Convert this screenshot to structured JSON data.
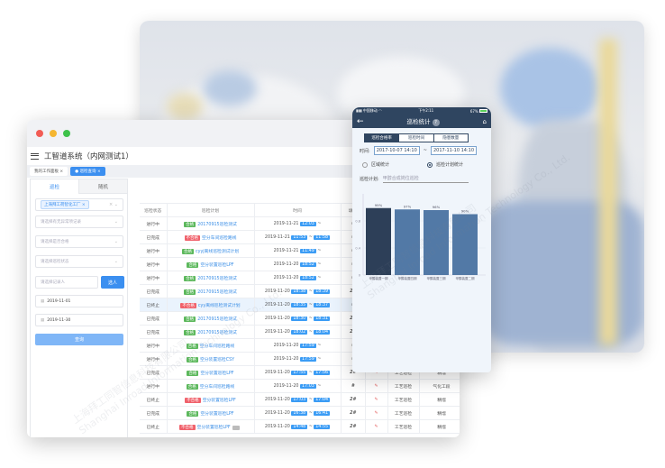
{
  "watermark": {
    "cn": "上海拜工同智信息科技有限公司",
    "en": "Shanghai Inroad Information Technology Co., Ltd."
  },
  "desktop": {
    "app_title": "工智道系统（内网测试1）",
    "page_tabs": [
      {
        "label": "我的工作面板",
        "active": false
      },
      {
        "label": "巡检查询",
        "active": true
      }
    ],
    "left_tabs": [
      "巡检",
      "随机"
    ],
    "filters": {
      "plant_tag": "上海拜工荷智化工厂",
      "abnormal_placeholder": "请选择有无异常项记录",
      "qualified_placeholder": "请选择是否合格",
      "status_placeholder": "请选择巡检状态",
      "recorder_placeholder": "请选择记录人",
      "pick_button": "选人",
      "date_from": "2019-11-01",
      "date_to": "2019-11-30",
      "query_button": "查询"
    },
    "table": {
      "headers": [
        "巡检状态",
        "巡检计划",
        "时间",
        "填写",
        "",
        "",
        ""
      ],
      "rows": [
        {
          "status": "进行中",
          "result": "合格",
          "plan": "20170915巡检测试",
          "date": "2019-11-21",
          "start": "12:03",
          "end": "",
          "fill": "#"
        },
        {
          "status": "已完成",
          "result": "不合格",
          "plan": "空分车间巡检路线",
          "date": "2019-11-21",
          "start": "11:53",
          "end": "11:58",
          "fill": "#"
        },
        {
          "status": "进行中",
          "result": "合格",
          "plan": "cyyj离线巡检测试计划",
          "date": "2019-11-21",
          "start": "11:49",
          "end": "",
          "fill": "#"
        },
        {
          "status": "进行中",
          "result": "合格",
          "plan": "空分装置巡检LPF",
          "date": "2019-11-20",
          "start": "18:52",
          "end": "",
          "fill": "#"
        },
        {
          "status": "进行中",
          "result": "合格",
          "plan": "20170915巡检测试",
          "date": "2019-11-20",
          "start": "18:52",
          "end": "",
          "fill": "#"
        },
        {
          "status": "已完成",
          "result": "合格",
          "plan": "20170915巡检测试",
          "date": "2019-11-20",
          "start": "18:38",
          "end": "18:39",
          "fill": "2#"
        },
        {
          "status": "已终止",
          "result": "不合格",
          "plan": "cyy离线巡检测试计划",
          "date": "2019-11-20",
          "start": "18:35",
          "end": "18:37",
          "fill": "#",
          "highlight": true
        },
        {
          "status": "已完成",
          "result": "合格",
          "plan": "20170915巡检测试",
          "date": "2019-11-20",
          "start": "18:30",
          "end": "18:31",
          "fill": "2#"
        },
        {
          "status": "已完成",
          "result": "合格",
          "plan": "20170915巡检测试",
          "date": "2019-11-20",
          "start": "18:02",
          "end": "18:04",
          "fill": "2#"
        },
        {
          "status": "进行中",
          "result": "合格",
          "plan": "空分车间巡检路线",
          "date": "2019-11-20",
          "start": "17:59",
          "end": "",
          "fill": "#"
        },
        {
          "status": "进行中",
          "result": "合格",
          "plan": "空分装置巡检CSY",
          "date": "2019-11-20",
          "start": "17:59",
          "end": "",
          "fill": "#"
        },
        {
          "status": "已完成",
          "result": "合格",
          "plan": "空分装置巡检LPF",
          "date": "2019-11-20",
          "start": "17:55",
          "end": "17:56",
          "fill": "2#",
          "type": "工艺巡检",
          "area": "精馏"
        },
        {
          "status": "进行中",
          "result": "合格",
          "plan": "空分车间巡检路线",
          "date": "2019-11-20",
          "start": "17:03",
          "end": "",
          "fill": "#",
          "type": "工艺巡检",
          "area": "气化工段"
        },
        {
          "status": "已终止",
          "result": "不合格",
          "plan": "空分装置巡检LPF",
          "date": "2019-11-20",
          "start": "17:03",
          "end": "17:04",
          "fill": "2#",
          "type": "工艺巡检",
          "area": "精馏"
        },
        {
          "status": "已完成",
          "result": "合格",
          "plan": "空分装置巡检LPF",
          "date": "2019-11-20",
          "start": "16:38",
          "end": "16:41",
          "fill": "2#",
          "type": "工艺巡检",
          "area": "精馏"
        },
        {
          "status": "已终止",
          "result": "不合格",
          "plan": "空分装置巡检LPF",
          "date": "2019-11-20",
          "start": "14:48",
          "end": "14:55",
          "fill": "2#",
          "type": "工艺巡检",
          "area": "精馏",
          "extra_badge": true
        }
      ]
    }
  },
  "phone": {
    "carrier": "中国移动",
    "time": "下午2:11",
    "battery": "67%",
    "title": "巡检统计",
    "help_icon": "?",
    "segments": [
      {
        "label": "巡检合格率",
        "active": true
      },
      {
        "label": "巡检时间",
        "active": false
      },
      {
        "label": "隐患数量",
        "active": false
      }
    ],
    "time_label": "时间:",
    "date_from": "2017-10-07 14:10",
    "date_sep": "~",
    "date_to": "2017-11-10 14:10",
    "radios": [
      {
        "label": "区域统计",
        "checked": false
      },
      {
        "label": "巡检计划统计",
        "checked": true
      }
    ],
    "plan_label": "巡检计划:",
    "plan_value": "甲醇合成岗位巡检"
  },
  "chart_data": {
    "type": "bar",
    "categories": [
      "甲醇装置一期",
      "甲醇装置四期",
      "甲醇装置三期",
      "甲醇装置二期"
    ],
    "values": [
      0.99,
      0.97,
      0.96,
      0.9
    ],
    "data_labels": [
      "99%",
      "97%",
      "96%",
      "90%"
    ],
    "yticks": [
      "0",
      "0.4",
      "0.8"
    ],
    "ylim": [
      0,
      1.2
    ],
    "colors": [
      "#2d3f58",
      "#5279a6",
      "#5279a6",
      "#5279a6"
    ]
  },
  "colors": {
    "accent": "#3b8ff0",
    "navy": "#2f4560",
    "ok": "#5cb85c",
    "bad": "#f0616b"
  }
}
